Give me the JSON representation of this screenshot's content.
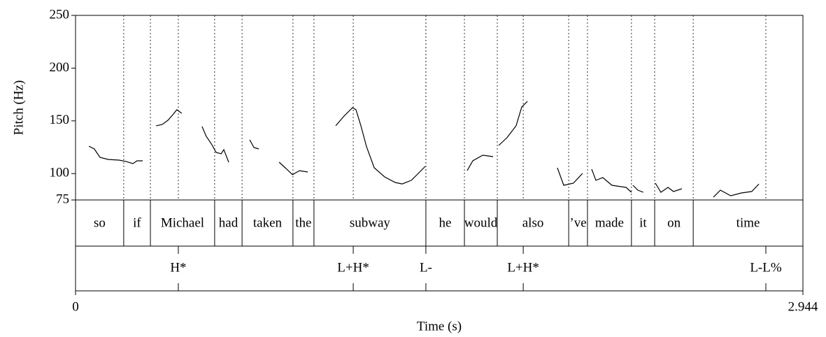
{
  "chart_data": {
    "type": "pitch",
    "xlabel": "Time (s)",
    "ylabel": "Pitch (Hz)",
    "xlim": [
      0,
      2.944
    ],
    "xticks": [
      0,
      2.944
    ],
    "ylim": [
      75,
      250
    ],
    "yticks": [
      75,
      100,
      150,
      200,
      250
    ],
    "color": "#000000",
    "segments": [
      {
        "x": [
          0.054,
          0.076,
          0.099,
          0.133,
          0.176,
          0.204,
          0.232,
          0.249,
          0.272
        ],
        "values": [
          126,
          123.4,
          115.4,
          113.4,
          112.8,
          111.5,
          109.5,
          112.1,
          112.1
        ]
      },
      {
        "x": [
          0.326,
          0.351,
          0.374,
          0.396,
          0.41,
          0.43
        ],
        "values": [
          145.3,
          146.6,
          150.6,
          156.5,
          160.5,
          157.2
        ]
      },
      {
        "x": [
          0.512,
          0.529,
          0.552,
          0.569,
          0.589,
          0.6,
          0.62
        ],
        "values": [
          144.6,
          135.3,
          127.4,
          120.1,
          118.8,
          122.7,
          110.8
        ]
      },
      {
        "x": [
          0.705,
          0.722,
          0.742
        ],
        "values": [
          132,
          124.7,
          123.4
        ]
      },
      {
        "x": [
          0.824,
          0.849,
          0.878,
          0.906,
          0.94
        ],
        "values": [
          110.8,
          105.5,
          98.9,
          102.8,
          101.5
        ]
      },
      {
        "x": [
          1.053,
          1.087,
          1.121,
          1.135,
          1.155,
          1.178,
          1.209,
          1.251,
          1.294,
          1.322,
          1.359,
          1.393,
          1.415
        ],
        "values": [
          145.3,
          154.6,
          162.5,
          160.5,
          145.3,
          125.4,
          105.5,
          96.9,
          91.6,
          90.2,
          93.6,
          101.5,
          106.8
        ]
      },
      {
        "x": [
          1.585,
          1.608,
          1.648,
          1.69
        ],
        "values": [
          102.8,
          112.1,
          117.4,
          116.1
        ]
      },
      {
        "x": [
          1.713,
          1.746,
          1.783,
          1.806,
          1.829
        ],
        "values": [
          126.7,
          134,
          145.3,
          163.2,
          168.5
        ]
      },
      {
        "x": [
          1.95,
          1.976,
          2.015,
          2.052
        ],
        "values": [
          105.5,
          88.9,
          90.9,
          100.2
        ]
      },
      {
        "x": [
          2.089,
          2.106,
          2.134,
          2.171,
          2.228,
          2.25
        ],
        "values": [
          104.2,
          93.6,
          96.2,
          88.9,
          86.9,
          82.3
        ]
      },
      {
        "x": [
          2.256,
          2.276,
          2.298
        ],
        "values": [
          88.9,
          84.3,
          82.3
        ]
      },
      {
        "x": [
          2.347,
          2.369,
          2.398,
          2.42,
          2.454
        ],
        "values": [
          90.9,
          82.3,
          86.9,
          83,
          85.6
        ]
      },
      {
        "x": [
          2.582,
          2.61,
          2.652,
          2.695,
          2.737,
          2.766
        ],
        "values": [
          77.7,
          84.3,
          79,
          81.6,
          83,
          90.2
        ]
      }
    ],
    "words": [
      {
        "label": "so",
        "start": 0,
        "end": 0.195
      },
      {
        "label": "if",
        "start": 0.195,
        "end": 0.303
      },
      {
        "label": "Michael",
        "start": 0.303,
        "end": 0.563
      },
      {
        "label": "had",
        "start": 0.563,
        "end": 0.674
      },
      {
        "label": "taken",
        "start": 0.674,
        "end": 0.88
      },
      {
        "label": "the",
        "start": 0.88,
        "end": 0.965
      },
      {
        "label": "subway",
        "start": 0.965,
        "end": 1.418
      },
      {
        "label": "he",
        "start": 1.418,
        "end": 1.574
      },
      {
        "label": "would",
        "start": 1.574,
        "end": 1.707
      },
      {
        "label": "also",
        "start": 1.707,
        "end": 1.996
      },
      {
        "label": "’ve",
        "start": 1.996,
        "end": 2.072
      },
      {
        "label": "made",
        "start": 2.072,
        "end": 2.25
      },
      {
        "label": "it",
        "start": 2.25,
        "end": 2.344
      },
      {
        "label": "on",
        "start": 2.344,
        "end": 2.5
      },
      {
        "label": "time",
        "start": 2.5,
        "end": 2.944
      }
    ],
    "tones": [
      {
        "label": "H*",
        "time": 0.416
      },
      {
        "label": "L+H*",
        "time": 1.124
      },
      {
        "label": "L-",
        "time": 1.418
      },
      {
        "label": "L+H*",
        "time": 1.812
      },
      {
        "label": "L-L%",
        "time": 2.794
      }
    ]
  }
}
